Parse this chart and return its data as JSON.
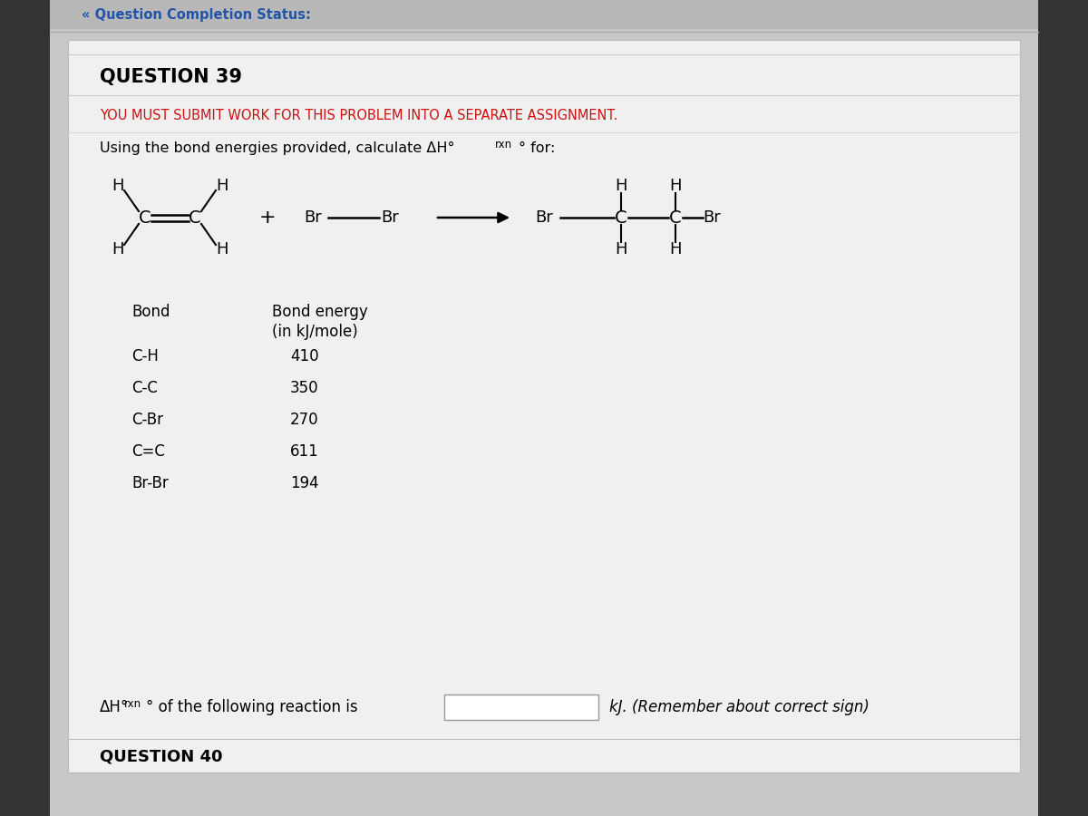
{
  "bg_outer": "#222222",
  "bg_mid": "#c8c8c8",
  "bg_panel": "#ececec",
  "top_bar_bg": "#c0c0c0",
  "top_bar_text": "« Question Completion Status:",
  "top_bar_color": "#2255aa",
  "question_number": "QUESTION 39",
  "red_text": "YOU MUST SUBMIT WORK FOR THIS PROBLEM INTO A SEPARATE ASSIGNMENT.",
  "instruction_pre": "Using the bond energies provided, calculate ΔH",
  "instruction_sub": "rxn",
  "instruction_post": "° for:",
  "bond_header1": "Bond",
  "bond_header2_line1": "Bond energy",
  "bond_header2_line2": "(in kJ/mole)",
  "bonds": [
    "C-H",
    "C-C",
    "C-Br",
    "C=C",
    "Br-Br"
  ],
  "energies": [
    "410",
    "350",
    "270",
    "611",
    "194"
  ],
  "footer_pre": "ΔH",
  "footer_sub": "rxn",
  "footer_post": "° of the following reaction is",
  "footer_suffix": "kJ. (Remember about correct sign)",
  "bottom_label": "QUESTION 40"
}
